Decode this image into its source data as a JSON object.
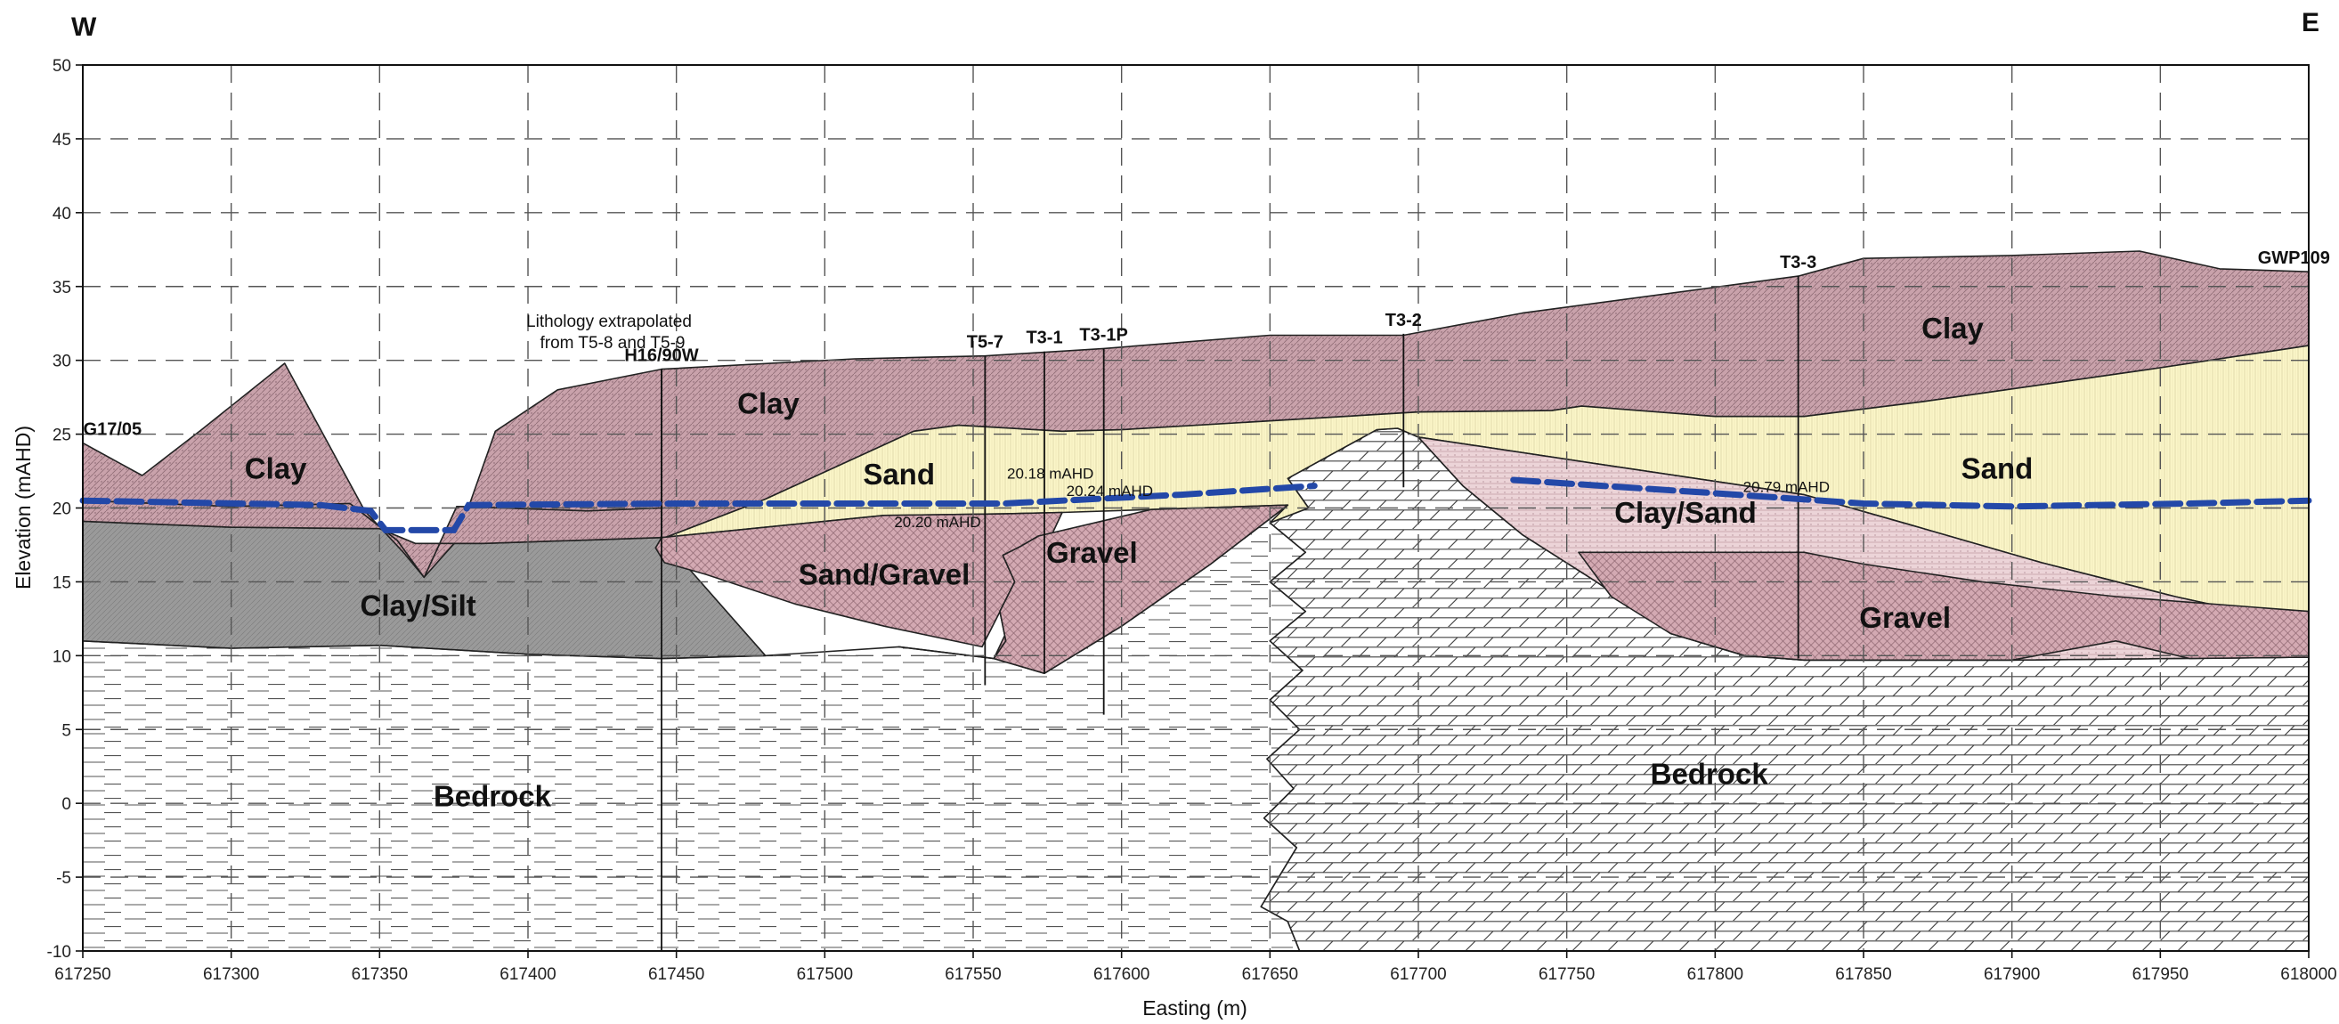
{
  "section": {
    "west_label": "W",
    "east_label": "E",
    "xlabel": "Easting (m)",
    "ylabel": "Elevation (mAHD)",
    "x_range": [
      617250,
      618000
    ],
    "y_range": [
      -10,
      50
    ],
    "x_ticks": [
      617250,
      617300,
      617350,
      617400,
      617450,
      617500,
      617550,
      617600,
      617650,
      617700,
      617750,
      617800,
      617850,
      617900,
      617950,
      618000
    ],
    "y_ticks": [
      -10,
      -5,
      0,
      5,
      10,
      15,
      20,
      25,
      30,
      35,
      40,
      45,
      50
    ],
    "grid": true,
    "colors": {
      "clay": "#c9a2ab",
      "sand": "#fbf6c8",
      "clay_sand": "#ecd4d8",
      "gravel": "#d3a9b2",
      "clay_silt": "#9a9a9a",
      "bedrock": "#ffffff",
      "water_table": "#2348a8"
    }
  },
  "units": [
    {
      "label": "Clay",
      "x": 617315,
      "y": 22
    },
    {
      "label": "Clay/Silt",
      "x": 617363,
      "y": 12.7
    },
    {
      "label": "Bedrock",
      "x": 617388,
      "y": -0.2
    },
    {
      "label": "Clay",
      "x": 617481,
      "y": 26.4
    },
    {
      "label": "Sand",
      "x": 617525,
      "y": 21.6
    },
    {
      "label": "Sand/Gravel",
      "x": 617520,
      "y": 14.8
    },
    {
      "label": "Gravel",
      "x": 617590,
      "y": 16.3
    },
    {
      "label": "Clay/Sand",
      "x": 617790,
      "y": 19.0
    },
    {
      "label": "Clay",
      "x": 617880,
      "y": 31.5
    },
    {
      "label": "Sand",
      "x": 617895,
      "y": 22.0
    },
    {
      "label": "Gravel",
      "x": 617864,
      "y": 11.9
    },
    {
      "label": "Bedrock",
      "x": 617798,
      "y": 1.3
    }
  ],
  "boreholes": [
    {
      "id": "G17/05",
      "x": 617260,
      "top": 24.4,
      "bottom": 24.4
    },
    {
      "id": "H16/90W",
      "x": 617445,
      "top": 29.4,
      "bottom": -10
    },
    {
      "id": "T5-7",
      "x": 617554,
      "top": 30.3,
      "bottom": 8.0
    },
    {
      "id": "T3-1",
      "x": 617574,
      "top": 30.6,
      "bottom": 8.8
    },
    {
      "id": "T3-1P",
      "x": 617594,
      "top": 30.8,
      "bottom": 6.0
    },
    {
      "id": "T3-2",
      "x": 617695,
      "top": 31.8,
      "bottom": 21.4
    },
    {
      "id": "T3-3",
      "x": 617828,
      "top": 35.7,
      "bottom": 9.8
    },
    {
      "id": "GWP109",
      "x": 617995,
      "top": 36.0,
      "bottom": 36.0
    }
  ],
  "water_levels": [
    {
      "label": "20.18 mAHD",
      "x": 617576,
      "y": 22.0
    },
    {
      "label": "20.24 mAHD",
      "x": 617596,
      "y": 20.8
    },
    {
      "label": "20.20 mAHD",
      "x": 617538,
      "y": 18.7
    },
    {
      "label": "20.79 mAHD",
      "x": 617824,
      "y": 21.1
    }
  ],
  "notes": {
    "line1": "Lithology extrapolated",
    "line2": "from T5-8 and T5-9"
  }
}
